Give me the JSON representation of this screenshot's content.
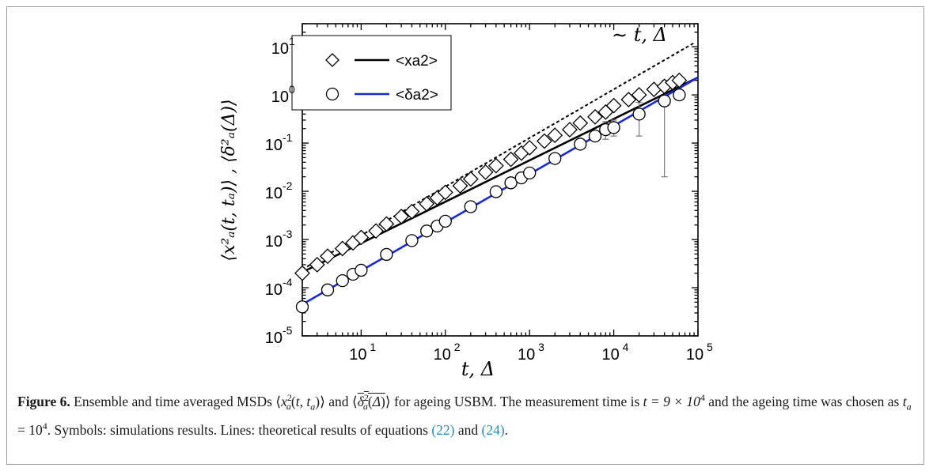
{
  "chart_data": {
    "type": "scatter",
    "xscale": "log",
    "yscale": "log",
    "xlim": [
      2,
      100000
    ],
    "ylim": [
      1e-05,
      30
    ],
    "x_ticks": [
      {
        "label_base": "10",
        "label_exp": "1"
      },
      {
        "label_base": "10",
        "label_exp": "2"
      },
      {
        "label_base": "10",
        "label_exp": "3"
      },
      {
        "label_base": "10",
        "label_exp": "4"
      },
      {
        "label_base": "10",
        "label_exp": "5"
      }
    ],
    "y_ticks": [
      {
        "label_base": "10",
        "label_exp": "-5"
      },
      {
        "label_base": "10",
        "label_exp": "-4"
      },
      {
        "label_base": "10",
        "label_exp": "-3"
      },
      {
        "label_base": "10",
        "label_exp": "-2"
      },
      {
        "label_base": "10",
        "label_exp": "-1"
      },
      {
        "label_base": "10",
        "label_exp": "0"
      },
      {
        "label_base": "10",
        "label_exp": "1"
      }
    ],
    "xlabel": "t, Δ",
    "ylabel": "⟨x²ₐ(t, tₐ)⟩ , ⟨δ²ₐ(Δ)⟩",
    "annotation": "∼ t, Δ",
    "legend": {
      "position": "top-left",
      "entries": [
        {
          "label": "<xa2>",
          "marker": "diamond",
          "line_color": "#000000"
        },
        {
          "label": "<δa2>",
          "marker": "circle",
          "line_color": "#1a2ad0"
        }
      ]
    },
    "series": [
      {
        "label": "<xa2>",
        "marker": "diamond",
        "points": [
          [
            2,
            0.0002
          ],
          [
            3,
            0.0003
          ],
          [
            4,
            0.00045
          ],
          [
            6,
            0.00065
          ],
          [
            8,
            0.00085
          ],
          [
            10,
            0.0011
          ],
          [
            15,
            0.0015
          ],
          [
            20,
            0.0021
          ],
          [
            30,
            0.003
          ],
          [
            40,
            0.0038
          ],
          [
            60,
            0.0055
          ],
          [
            80,
            0.0073
          ],
          [
            100,
            0.0095
          ],
          [
            150,
            0.013
          ],
          [
            200,
            0.018
          ],
          [
            300,
            0.025
          ],
          [
            400,
            0.034
          ],
          [
            600,
            0.046
          ],
          [
            800,
            0.062
          ],
          [
            1000,
            0.08
          ],
          [
            1500,
            0.11
          ],
          [
            2000,
            0.145
          ],
          [
            3000,
            0.19
          ],
          [
            4000,
            0.26
          ],
          [
            6000,
            0.35
          ],
          [
            8000,
            0.44
          ],
          [
            10000,
            0.6
          ],
          [
            15000,
            0.8
          ],
          [
            20000,
            1.0
          ],
          [
            30000,
            1.3
          ],
          [
            40000,
            1.5
          ],
          [
            50000,
            1.8
          ],
          [
            60000,
            2.0
          ]
        ]
      },
      {
        "label": "<δa2>",
        "marker": "circle",
        "points": [
          [
            2,
            4e-05,
            null,
            null
          ],
          [
            4,
            9e-05,
            null,
            null
          ],
          [
            6,
            0.00014,
            null,
            null
          ],
          [
            8,
            0.00019,
            null,
            null
          ],
          [
            10,
            0.00023,
            null,
            null
          ],
          [
            20,
            0.00049,
            null,
            null
          ],
          [
            40,
            0.00095,
            null,
            null
          ],
          [
            60,
            0.0015,
            null,
            null
          ],
          [
            80,
            0.0019,
            null,
            null
          ],
          [
            100,
            0.0024,
            null,
            null
          ],
          [
            200,
            0.0048,
            null,
            null
          ],
          [
            400,
            0.0098,
            null,
            null
          ],
          [
            600,
            0.015,
            null,
            null
          ],
          [
            800,
            0.019,
            null,
            null
          ],
          [
            1000,
            0.024,
            null,
            null
          ],
          [
            2000,
            0.048,
            null,
            null
          ],
          [
            4000,
            0.095,
            0.078,
            0.11
          ],
          [
            6000,
            0.14,
            0.11,
            0.17
          ],
          [
            8000,
            0.19,
            0.12,
            0.28
          ],
          [
            10000,
            0.21,
            0.14,
            0.3
          ],
          [
            20000,
            0.4,
            0.14,
            0.7
          ],
          [
            40000,
            0.75,
            0.02,
            2.0
          ],
          [
            60000,
            1.0,
            null,
            null
          ]
        ]
      }
    ],
    "lines": [
      {
        "name": "<xa2> theory",
        "color": "#000000",
        "style": "solid",
        "points": [
          [
            2,
            0.00021
          ],
          [
            100000,
            2.3
          ]
        ]
      },
      {
        "name": "<δa2> theory",
        "color": "#1a2ad0",
        "style": "solid",
        "points": [
          [
            2,
            4.5e-05
          ],
          [
            100000,
            2.3
          ]
        ]
      },
      {
        "name": "∼ t, Δ",
        "color": "#000000",
        "style": "dashed",
        "points": [
          [
            2,
            0.00024
          ],
          [
            90000,
            12
          ]
        ]
      }
    ]
  },
  "caption": {
    "figure_label": "Figure 6.",
    "text_1": " Ensemble and time averaged MSDs ⟨",
    "text_2": "⟩ and ⟨",
    "text_3": "⟩ for ageing USBM. The measurement time is ",
    "measurement_time": "t = 9 × 10",
    "measurement_exp": "4",
    "text_4": " and the ageing time was chosen as ",
    "ageing_time": "t",
    "ageing_sub": "a",
    "ageing_eq": " = 10",
    "ageing_exp": "4",
    "text_5": ". Symbols: simulations results. Lines: theoretical results of equations ",
    "eq_ref_1": "(22)",
    "text_6": " and ",
    "eq_ref_2": "(24)",
    "text_7": "."
  }
}
